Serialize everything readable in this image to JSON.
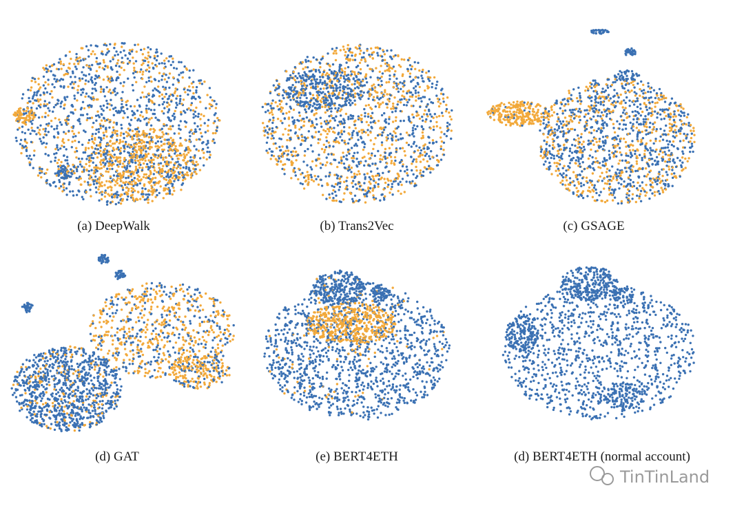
{
  "panels": [
    {
      "caption": "(a) DeepWalk"
    },
    {
      "caption": "(b) Trans2Vec"
    },
    {
      "caption": "(c) GSAGE"
    },
    {
      "caption": "(d) GAT"
    },
    {
      "caption": "(e) BERT4ETH"
    },
    {
      "caption": "(d) BERT4ETH (normal account)"
    }
  ],
  "watermark": "TinTinLand"
}
